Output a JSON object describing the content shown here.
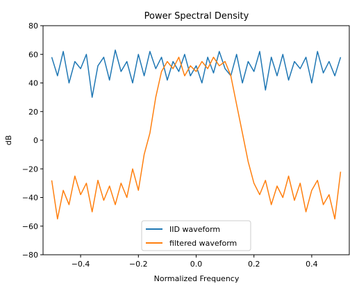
{
  "chart_data": {
    "type": "line",
    "title": "Power Spectral Density",
    "xlabel": "Normalized Frequency",
    "ylabel": "dB",
    "xlim": [
      -0.53,
      0.53
    ],
    "ylim": [
      -80,
      80
    ],
    "xticks": [
      -0.4,
      -0.2,
      0.0,
      0.2,
      0.4
    ],
    "xtick_labels": [
      "−0.4",
      "−0.2",
      "0.0",
      "0.2",
      "0.4"
    ],
    "yticks": [
      -80,
      -60,
      -40,
      -20,
      0,
      20,
      40,
      60,
      80
    ],
    "ytick_labels": [
      "−80",
      "−60",
      "−40",
      "−20",
      "0",
      "20",
      "40",
      "60",
      "80"
    ],
    "grid": false,
    "legend_position": "bottom-center",
    "series": [
      {
        "name": "IID waveform",
        "color": "#1f77b4",
        "x": [
          -0.5,
          -0.48,
          -0.46,
          -0.44,
          -0.42,
          -0.4,
          -0.38,
          -0.36,
          -0.34,
          -0.32,
          -0.3,
          -0.28,
          -0.26,
          -0.24,
          -0.22,
          -0.2,
          -0.18,
          -0.16,
          -0.14,
          -0.12,
          -0.1,
          -0.08,
          -0.06,
          -0.04,
          -0.02,
          0.0,
          0.02,
          0.04,
          0.06,
          0.08,
          0.1,
          0.12,
          0.14,
          0.16,
          0.18,
          0.2,
          0.22,
          0.24,
          0.26,
          0.28,
          0.3,
          0.32,
          0.34,
          0.36,
          0.38,
          0.4,
          0.42,
          0.44,
          0.46,
          0.48,
          0.5
        ],
        "y": [
          58,
          45,
          62,
          40,
          55,
          50,
          60,
          30,
          52,
          58,
          42,
          63,
          48,
          55,
          40,
          60,
          45,
          62,
          50,
          58,
          42,
          55,
          48,
          60,
          45,
          52,
          40,
          58,
          47,
          62,
          50,
          45,
          60,
          40,
          55,
          48,
          62,
          35,
          58,
          45,
          60,
          42,
          55,
          50,
          58,
          40,
          62,
          47,
          55,
          45,
          58
        ]
      },
      {
        "name": "filtered waveform",
        "color": "#ff7f0e",
        "x": [
          -0.5,
          -0.48,
          -0.46,
          -0.44,
          -0.42,
          -0.4,
          -0.38,
          -0.36,
          -0.34,
          -0.32,
          -0.3,
          -0.28,
          -0.26,
          -0.24,
          -0.22,
          -0.2,
          -0.18,
          -0.16,
          -0.14,
          -0.12,
          -0.1,
          -0.08,
          -0.06,
          -0.04,
          -0.02,
          0.0,
          0.02,
          0.04,
          0.06,
          0.08,
          0.1,
          0.12,
          0.14,
          0.16,
          0.18,
          0.2,
          0.22,
          0.24,
          0.26,
          0.28,
          0.3,
          0.32,
          0.34,
          0.36,
          0.38,
          0.4,
          0.42,
          0.44,
          0.46,
          0.48,
          0.5
        ],
        "y": [
          -28,
          -55,
          -35,
          -45,
          -25,
          -38,
          -30,
          -50,
          -28,
          -42,
          -32,
          -45,
          -30,
          -40,
          -20,
          -35,
          -10,
          5,
          30,
          48,
          55,
          50,
          58,
          45,
          52,
          48,
          55,
          50,
          58,
          52,
          55,
          45,
          25,
          5,
          -15,
          -30,
          -38,
          -28,
          -45,
          -32,
          -40,
          -25,
          -42,
          -30,
          -50,
          -35,
          -28,
          -45,
          -38,
          -55,
          -22
        ]
      }
    ]
  }
}
